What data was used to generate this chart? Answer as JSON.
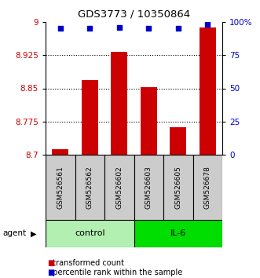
{
  "title": "GDS3773 / 10350864",
  "samples": [
    "GSM526561",
    "GSM526562",
    "GSM526602",
    "GSM526603",
    "GSM526605",
    "GSM526678"
  ],
  "red_values": [
    8.712,
    8.868,
    8.932,
    8.853,
    8.762,
    8.988
  ],
  "blue_values": [
    95,
    95,
    96,
    95,
    95,
    98
  ],
  "ylim_left": [
    8.7,
    9.0
  ],
  "ylim_right": [
    0,
    100
  ],
  "yticks_left": [
    8.7,
    8.775,
    8.85,
    8.925,
    9.0
  ],
  "ytick_labels_left": [
    "8.7",
    "8.775",
    "8.85",
    "8.925",
    "9"
  ],
  "yticks_right": [
    0,
    25,
    50,
    75,
    100
  ],
  "ytick_labels_right": [
    "0",
    "25",
    "50",
    "75",
    "100%"
  ],
  "groups": [
    {
      "label": "control",
      "indices": [
        0,
        1,
        2
      ],
      "color": "#b2f0b2"
    },
    {
      "label": "IL-6",
      "indices": [
        3,
        4,
        5
      ],
      "color": "#00dd00"
    }
  ],
  "bar_color": "#cc0000",
  "dot_color": "#0000cc",
  "tick_label_color_left": "#cc0000",
  "tick_label_color_right": "#0000cc",
  "legend_items": [
    "transformed count",
    "percentile rank within the sample"
  ],
  "bar_width": 0.55,
  "sample_box_color": "#cccccc",
  "agent_label": "agent"
}
